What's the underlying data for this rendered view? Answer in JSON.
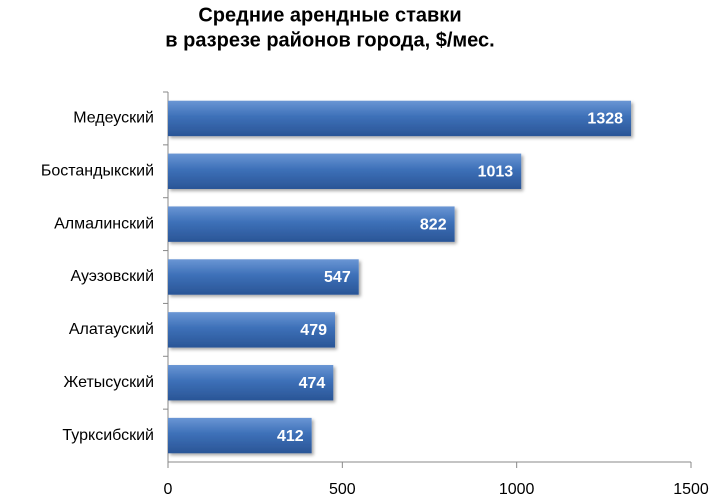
{
  "chart_data": {
    "type": "bar",
    "orientation": "horizontal",
    "title": [
      "Средние арендные ставки",
      "в разрезе районов города, $/мес."
    ],
    "categories": [
      "Медеуский",
      "Бостандыкский",
      "Алмалинский",
      "Ауэзовский",
      "Алатауский",
      "Жетысуский",
      "Турксибский"
    ],
    "values": [
      1328,
      1013,
      822,
      547,
      479,
      474,
      412
    ],
    "color": "#3d70b8",
    "xlim": [
      0,
      1500
    ],
    "xticks": [
      0,
      500,
      1000,
      1500
    ]
  }
}
